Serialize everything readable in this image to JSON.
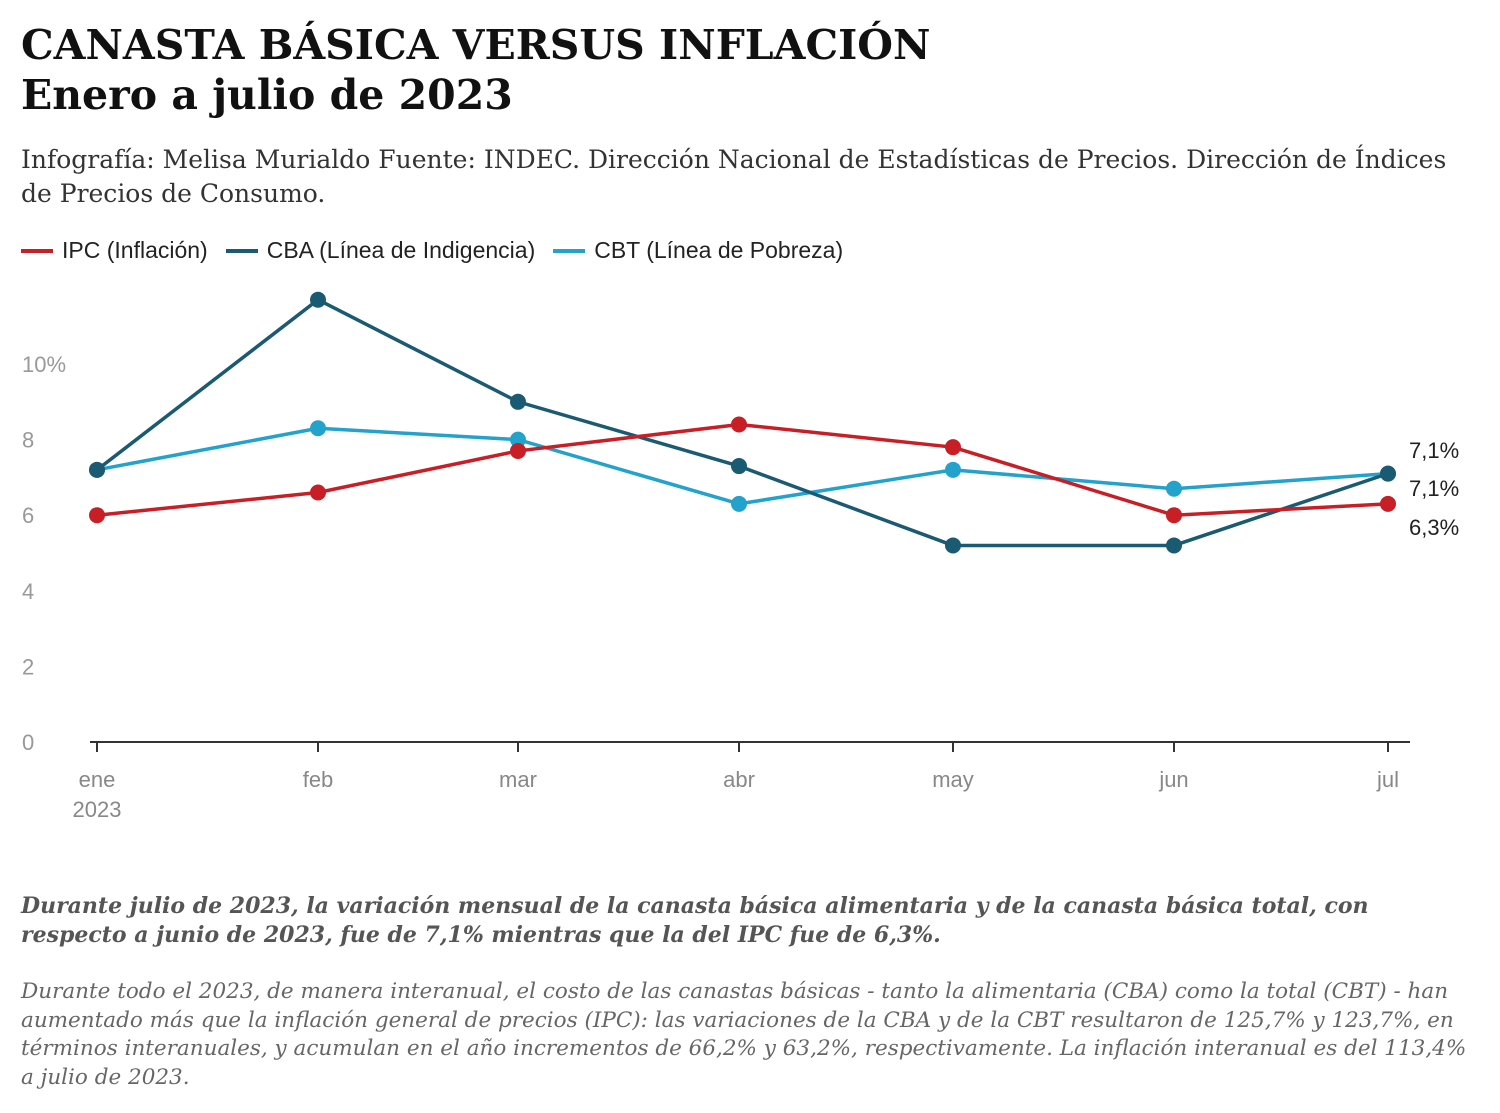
{
  "title": "CANASTA BÁSICA VERSUS INFLACIÓN",
  "subtitle": "Enero a julio de 2023",
  "credits": "Infografía: Melisa Murialdo Fuente: INDEC. Dirección Nacional de Estadísticas de Precios. Dirección de Índices de Precios de Consumo.",
  "chart_data": {
    "type": "line",
    "categories": [
      "ene",
      "feb",
      "mar",
      "abr",
      "may",
      "jun",
      "jul"
    ],
    "x_sublabel": "2023",
    "ylim": [
      0,
      12
    ],
    "yticks": [
      "0",
      "2",
      "4",
      "6",
      "8",
      "10%"
    ],
    "grid": false,
    "legend_position": "top-left",
    "series": [
      {
        "name": "IPC (Inflación)",
        "color": "#c81f27",
        "values": [
          6.0,
          6.6,
          7.7,
          8.4,
          7.8,
          6.0,
          6.3
        ],
        "end_label": "6,3%"
      },
      {
        "name": "CBA (Línea de Indigencia)",
        "color": "#1a5a72",
        "values": [
          7.2,
          11.7,
          9.0,
          7.3,
          5.2,
          5.2,
          7.1
        ],
        "end_label": "7,1%"
      },
      {
        "name": "CBT (Línea de Pobreza)",
        "color": "#23a2cc",
        "values": [
          7.2,
          8.3,
          8.0,
          6.3,
          7.2,
          6.7,
          7.1
        ],
        "end_label": "7,1%"
      }
    ]
  },
  "note_bold": "Durante julio de 2023, la variación mensual de la canasta básica alimentaria y de la canasta básica total, con respecto a junio de 2023, fue de 7,1% mientras que la del IPC fue de 6,3%.",
  "note": "Durante todo el 2023, de manera interanual, el costo de las canastas básicas - tanto la alimentaria (CBA) como la total (CBT) - han aumentado más que la inflación general de precios (IPC): las variaciones de la CBA y de la CBT resultaron de 125,7% y 123,7%, en términos interanuales, y acumulan en el año incrementos de 66,2% y 63,2%, respectivamente. La inflación interanual es del 113,4% a julio de 2023."
}
